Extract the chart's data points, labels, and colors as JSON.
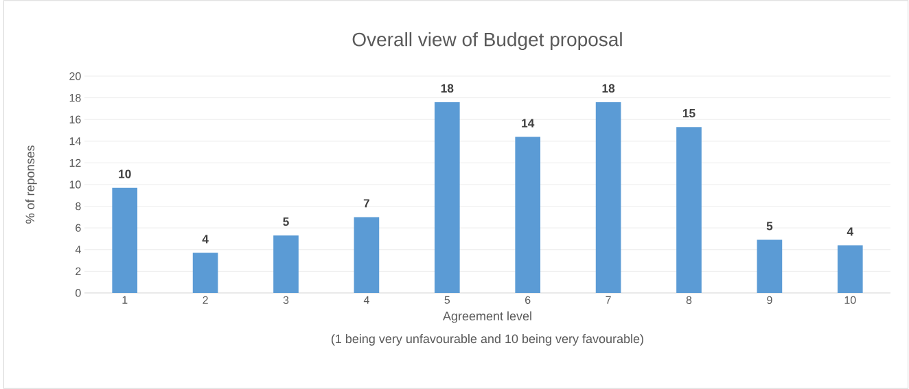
{
  "chart_data": {
    "type": "bar",
    "title": "Overall view of Budget proposal",
    "xlabel": "Agreement level",
    "ylabel": "% of reponses",
    "annotations": [
      "(1 being very unfavourable and 10 being very favourable)"
    ],
    "categories": [
      "1",
      "2",
      "3",
      "4",
      "5",
      "6",
      "7",
      "8",
      "9",
      "10"
    ],
    "values": [
      9.7,
      3.7,
      5.3,
      7.0,
      17.6,
      14.4,
      17.6,
      15.3,
      4.9,
      4.4
    ],
    "value_labels": [
      "10",
      "4",
      "5",
      "7",
      "18",
      "14",
      "18",
      "15",
      "5",
      "4"
    ],
    "color": "#5b9bd5",
    "ylim": [
      0,
      20
    ],
    "yticks": [
      0,
      2,
      4,
      6,
      8,
      10,
      12,
      14,
      16,
      18,
      20
    ],
    "grid": "y"
  }
}
